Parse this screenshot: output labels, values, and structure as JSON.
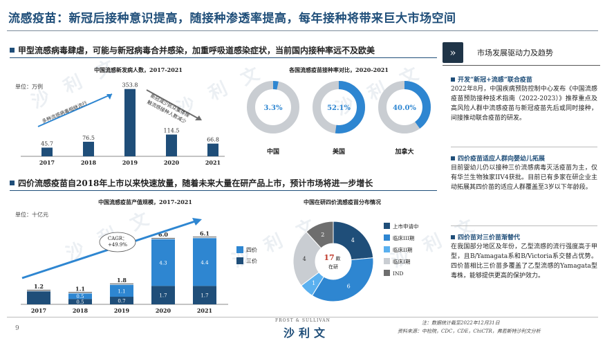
{
  "title": "流感疫苗：新冠后接种意识提高，随接种渗透率提高，每年接种将带来巨大市场空间",
  "watermark": "沙 利 文",
  "section1": {
    "header": "甲型流感病毒肆虐，可能与新冠病毒合并感染，加重呼吸道感染症状，当前国内接种率远不及欧美"
  },
  "section2": {
    "header": "四价流感疫苗自2018年上市以来快速放量，随着未来大量在研产品上市，预计市场将进一步增长"
  },
  "chart_data": [
    {
      "type": "bar",
      "title": "中国流感新发病人数，2017-2021",
      "unit": "单位：万例",
      "categories": [
        "2017",
        "2018",
        "2019",
        "2020",
        "2021"
      ],
      "values": [
        45.7,
        76.5,
        353.8,
        114.5,
        66.8
      ],
      "value_labels": [
        "45.7",
        "76.5",
        "353.8",
        "114.5",
        "66.8"
      ],
      "ylim": [
        0,
        400
      ],
      "color": "#1f4e79",
      "annotations": [
        "多种流感病毒相继流行",
        "新冠减少民众集体接触流感接种人数减少"
      ]
    },
    {
      "type": "pie",
      "title": "各国流感疫苗接种率对比，2020-2021",
      "categories": [
        "中国",
        "美国",
        "加拿大"
      ],
      "values": [
        3.3,
        52.1,
        40.0
      ],
      "value_labels": [
        "3.3%",
        "52.1%",
        "40.0%"
      ],
      "colors": {
        "filled": "#2e86d1",
        "rest": "#c9cdd2"
      }
    },
    {
      "type": "bar",
      "title": "中国流感疫苗产值规模，2017-2021",
      "unit": "单位：十亿元",
      "categories": [
        "2017",
        "2018",
        "2019",
        "2020",
        "2021"
      ],
      "series": [
        {
          "name": "四价",
          "values": [
            0,
            0.5,
            1.1,
            4.3,
            4.4
          ],
          "labels": [
            "",
            "0.5",
            "1.1",
            "4.3",
            "4.4"
          ],
          "color": "#2e86d1"
        },
        {
          "name": "三价",
          "values": [
            1.2,
            0.5,
            0.7,
            1.7,
            1.7
          ],
          "labels": [
            "",
            "0.5",
            "0.7",
            "1.7",
            "1.7"
          ],
          "color": "#1f4e79"
        }
      ],
      "totals": [
        "1.2",
        "1.1",
        "1.8",
        "6.0",
        "6.1"
      ],
      "ylim": [
        0,
        6.5
      ],
      "cagr_label": "CAGR：",
      "cagr_value": "+49.9%"
    },
    {
      "type": "pie",
      "title": "中国在研四价流感疫苗分布情况",
      "categories": [
        "上市申请中",
        "临床III期",
        "临床II期",
        "临床I期",
        "IND"
      ],
      "values": [
        4,
        6,
        1,
        4,
        2
      ],
      "colors": [
        "#1f4e79",
        "#2e86d1",
        "#5ab0ef",
        "#c9cdd2",
        "#6e6e6e"
      ],
      "center_value": "17",
      "center_unit": "款",
      "center_label": "在研"
    }
  ],
  "sidebar": {
    "header_icon": "double-chevron-right-icon",
    "header_arrow": "»",
    "title": "市场发展驱动力及趋势",
    "items": [
      {
        "heading": "开发“新冠+流感”联合疫苗",
        "text": "2022年8月，中国疾病预防控制中心发布《中国流感疫苗预防接种技术指南（2022-2023）》推荐重点及高风险人群中流感疫苗与新冠疫苗先后或同时接种，间接推动联合疫苗的研发。"
      },
      {
        "heading": "四价疫苗适应人群向婴幼儿拓展",
        "text": "目前婴幼儿仍以接种三价流感病毒灭活疫苗为主，仅有华兰生物独家IIV4获批。目前已有多家在研企业主动拓展其四价苗的适应人群覆盖至3岁以下年龄段。"
      },
      {
        "heading": "四价苗对三价苗渐替代",
        "text": "在我国部分地区及年份，乙型流感的流行强度高于甲型，且B/Yamagata系和B/Victoria系交替占优势。四价苗相比三价苗多覆盖了乙型流感的Yamagata型毒株，能够提供更高的保护效力。"
      }
    ]
  },
  "footer": {
    "page": "9",
    "logo_small": "FROST & SULLIVAN",
    "logo_main": "沙利文",
    "note": "注：数据统计截至2022年12月31日",
    "source": "资料来源：中检院，CDC，CDE，ChiCTR，弗若斯特沙利文分析"
  }
}
